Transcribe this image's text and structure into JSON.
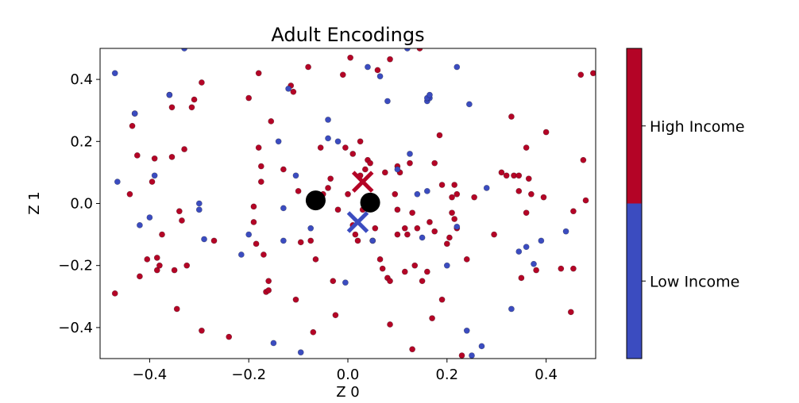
{
  "chart_data": {
    "type": "scatter",
    "title": "Adult Encodings",
    "xlabel": "Z 0",
    "ylabel": "Z 1",
    "xlim": [
      -0.5,
      0.5
    ],
    "ylim": [
      -0.5,
      0.5
    ],
    "xticks": [
      -0.4,
      -0.2,
      0.0,
      0.2,
      0.4
    ],
    "yticks": [
      -0.4,
      -0.2,
      0.0,
      0.2,
      0.4
    ],
    "xtick_labels": [
      "−0.4",
      "−0.2",
      "0.0",
      "0.2",
      "0.4"
    ],
    "ytick_labels": [
      "−0.4",
      "−0.2",
      "0.0",
      "0.2",
      "0.4"
    ],
    "grid": false,
    "colorbar": {
      "labels": [
        "High Income",
        "Low Income"
      ],
      "colors": [
        "#b40426",
        "#3b4cc0"
      ]
    },
    "colors": {
      "high_income": "#b40426",
      "low_income": "#3b4cc0",
      "centers": "#000000"
    },
    "series": [
      {
        "name": "High Income",
        "color": "#b40426",
        "points": [
          [
            -0.47,
            -0.29
          ],
          [
            -0.44,
            0.03
          ],
          [
            -0.435,
            0.25
          ],
          [
            -0.43,
            0.29
          ],
          [
            -0.425,
            0.155
          ],
          [
            -0.42,
            -0.235
          ],
          [
            -0.405,
            -0.18
          ],
          [
            -0.395,
            0.07
          ],
          [
            -0.39,
            0.145
          ],
          [
            -0.385,
            -0.175
          ],
          [
            -0.385,
            -0.215
          ],
          [
            -0.38,
            -0.2
          ],
          [
            -0.375,
            -0.1
          ],
          [
            -0.36,
            0.35
          ],
          [
            -0.355,
            0.31
          ],
          [
            -0.355,
            0.15
          ],
          [
            -0.35,
            -0.215
          ],
          [
            -0.345,
            -0.34
          ],
          [
            -0.34,
            -0.025
          ],
          [
            -0.335,
            -0.055
          ],
          [
            -0.33,
            0.175
          ],
          [
            -0.325,
            -0.2
          ],
          [
            -0.315,
            0.31
          ],
          [
            -0.31,
            0.335
          ],
          [
            -0.295,
            0.39
          ],
          [
            -0.295,
            -0.41
          ],
          [
            -0.27,
            -0.12
          ],
          [
            -0.24,
            -0.43
          ],
          [
            -0.2,
            0.34
          ],
          [
            -0.19,
            -0.01
          ],
          [
            -0.19,
            -0.06
          ],
          [
            -0.185,
            -0.13
          ],
          [
            -0.18,
            0.42
          ],
          [
            -0.18,
            0.18
          ],
          [
            -0.175,
            0.12
          ],
          [
            -0.175,
            0.07
          ],
          [
            -0.17,
            -0.165
          ],
          [
            -0.165,
            -0.285
          ],
          [
            -0.16,
            -0.25
          ],
          [
            -0.16,
            -0.28
          ],
          [
            -0.155,
            0.265
          ],
          [
            -0.13,
            0.11
          ],
          [
            -0.115,
            0.38
          ],
          [
            -0.11,
            0.36
          ],
          [
            -0.105,
            -0.31
          ],
          [
            -0.1,
            0.04
          ],
          [
            -0.095,
            -0.125
          ],
          [
            -0.08,
            0.44
          ],
          [
            -0.075,
            -0.12
          ],
          [
            -0.07,
            -0.415
          ],
          [
            -0.065,
            -0.18
          ],
          [
            -0.055,
            0.18
          ],
          [
            -0.05,
            0.03
          ],
          [
            -0.04,
            0.05
          ],
          [
            -0.035,
            0.08
          ],
          [
            -0.03,
            -0.25
          ],
          [
            -0.025,
            -0.36
          ],
          [
            -0.02,
            -0.02
          ],
          [
            -0.01,
            0.415
          ],
          [
            -0.005,
            0.18
          ],
          [
            0.0,
            0.03
          ],
          [
            0.005,
            0.47
          ],
          [
            0.01,
            -0.07
          ],
          [
            0.01,
            0.16
          ],
          [
            0.015,
            -0.1
          ],
          [
            0.02,
            -0.12
          ],
          [
            0.025,
            0.2
          ],
          [
            0.025,
            0.09
          ],
          [
            0.03,
            -0.02
          ],
          [
            0.035,
            0.11
          ],
          [
            0.04,
            0.14
          ],
          [
            0.045,
            0.13
          ],
          [
            0.05,
            -0.12
          ],
          [
            0.055,
            -0.08
          ],
          [
            0.06,
            0.43
          ],
          [
            0.065,
            -0.18
          ],
          [
            0.07,
            -0.21
          ],
          [
            0.075,
            0.1
          ],
          [
            0.08,
            -0.24
          ],
          [
            0.085,
            -0.25
          ],
          [
            0.085,
            0.465
          ],
          [
            0.085,
            -0.39
          ],
          [
            0.095,
            0.03
          ],
          [
            0.1,
            -0.02
          ],
          [
            0.1,
            0.12
          ],
          [
            0.1,
            -0.1
          ],
          [
            0.105,
            0.1
          ],
          [
            0.115,
            -0.08
          ],
          [
            0.115,
            -0.22
          ],
          [
            0.12,
            -0.1
          ],
          [
            0.125,
            0.13
          ],
          [
            0.13,
            -0.03
          ],
          [
            0.13,
            -0.47
          ],
          [
            0.135,
            -0.2
          ],
          [
            0.14,
            -0.08
          ],
          [
            0.145,
            0.5
          ],
          [
            0.15,
            -0.25
          ],
          [
            0.16,
            -0.22
          ],
          [
            0.165,
            -0.06
          ],
          [
            0.17,
            -0.37
          ],
          [
            0.175,
            -0.09
          ],
          [
            0.175,
            0.13
          ],
          [
            0.185,
            0.22
          ],
          [
            0.19,
            -0.31
          ],
          [
            0.19,
            0.06
          ],
          [
            0.2,
            -0.13
          ],
          [
            0.205,
            -0.11
          ],
          [
            0.21,
            0.02
          ],
          [
            0.21,
            -0.03
          ],
          [
            0.215,
            0.06
          ],
          [
            0.215,
            -0.05
          ],
          [
            0.22,
            -0.08
          ],
          [
            0.22,
            0.03
          ],
          [
            0.23,
            -0.49
          ],
          [
            0.24,
            -0.18
          ],
          [
            0.255,
            0.02
          ],
          [
            0.295,
            -0.1
          ],
          [
            0.31,
            0.1
          ],
          [
            0.32,
            0.09
          ],
          [
            0.33,
            0.28
          ],
          [
            0.335,
            0.09
          ],
          [
            0.345,
            0.09
          ],
          [
            0.345,
            0.04
          ],
          [
            0.35,
            -0.24
          ],
          [
            0.36,
            0.18
          ],
          [
            0.36,
            -0.03
          ],
          [
            0.365,
            0.08
          ],
          [
            0.37,
            0.03
          ],
          [
            0.38,
            -0.215
          ],
          [
            0.395,
            0.02
          ],
          [
            0.4,
            0.23
          ],
          [
            0.43,
            -0.21
          ],
          [
            0.45,
            -0.35
          ],
          [
            0.455,
            -0.21
          ],
          [
            0.455,
            -0.025
          ],
          [
            0.47,
            0.415
          ],
          [
            0.475,
            0.14
          ],
          [
            0.48,
            0.01
          ],
          [
            0.495,
            0.42
          ]
        ]
      },
      {
        "name": "Low Income",
        "color": "#3b4cc0",
        "points": [
          [
            -0.47,
            0.42
          ],
          [
            -0.465,
            0.07
          ],
          [
            -0.43,
            0.29
          ],
          [
            -0.42,
            -0.07
          ],
          [
            -0.4,
            -0.045
          ],
          [
            -0.39,
            0.09
          ],
          [
            -0.36,
            0.35
          ],
          [
            -0.33,
            0.5
          ],
          [
            -0.3,
            0.0
          ],
          [
            -0.3,
            -0.02
          ],
          [
            -0.29,
            -0.115
          ],
          [
            -0.215,
            -0.165
          ],
          [
            -0.2,
            -0.1
          ],
          [
            -0.15,
            -0.45
          ],
          [
            -0.14,
            0.2
          ],
          [
            -0.13,
            -0.015
          ],
          [
            -0.13,
            -0.12
          ],
          [
            -0.12,
            0.37
          ],
          [
            -0.105,
            0.09
          ],
          [
            -0.095,
            -0.48
          ],
          [
            -0.075,
            -0.08
          ],
          [
            -0.04,
            0.27
          ],
          [
            -0.04,
            0.21
          ],
          [
            -0.02,
            0.2
          ],
          [
            -0.005,
            -0.255
          ],
          [
            0.04,
            0.44
          ],
          [
            0.05,
            -0.12
          ],
          [
            0.065,
            0.41
          ],
          [
            0.08,
            0.33
          ],
          [
            0.1,
            0.11
          ],
          [
            0.12,
            0.5
          ],
          [
            0.125,
            0.16
          ],
          [
            0.14,
            0.03
          ],
          [
            0.15,
            -0.11
          ],
          [
            0.16,
            0.04
          ],
          [
            0.16,
            0.33
          ],
          [
            0.165,
            0.34
          ],
          [
            0.16,
            0.34
          ],
          [
            0.165,
            0.35
          ],
          [
            0.2,
            -0.2
          ],
          [
            0.22,
            -0.075
          ],
          [
            0.22,
            0.44
          ],
          [
            0.24,
            -0.41
          ],
          [
            0.245,
            0.32
          ],
          [
            0.25,
            -0.49
          ],
          [
            0.27,
            -0.46
          ],
          [
            0.28,
            0.05
          ],
          [
            0.33,
            -0.34
          ],
          [
            0.345,
            -0.155
          ],
          [
            0.36,
            -0.14
          ],
          [
            0.375,
            -0.195
          ],
          [
            0.39,
            -0.12
          ],
          [
            0.44,
            -0.09
          ]
        ]
      }
    ],
    "markers": [
      {
        "name": "High Income center",
        "marker": "x",
        "x": 0.03,
        "y": 0.07,
        "color": "#b40426"
      },
      {
        "name": "Low Income center",
        "marker": "x",
        "x": 0.02,
        "y": -0.06,
        "color": "#3b4cc0"
      },
      {
        "name": "encoding point",
        "marker": "o",
        "x": -0.065,
        "y": 0.01,
        "color": "#000000"
      },
      {
        "name": "encoding point",
        "marker": "o",
        "x": 0.045,
        "y": 0.003,
        "color": "#000000"
      }
    ]
  }
}
